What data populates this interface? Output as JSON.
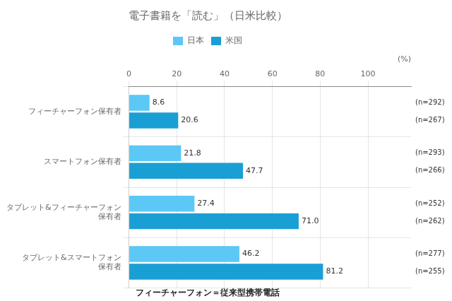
{
  "chart_data": {
    "type": "bar",
    "orientation": "horizontal",
    "title": "電子書籍を「読む」（日米比較）",
    "footnote": "フィーチャーフォン＝従来型携帯電話",
    "xlabel": "(%)",
    "categories": [
      "フィーチャーフォン保有者",
      "スマートフォン保有者",
      "タブレット&フィーチャーフォン\n保有者",
      "タブレット&スマートフォン\n保有者"
    ],
    "series": [
      {
        "name": "日本",
        "color": "#5bc8f5",
        "values": [
          8.6,
          21.8,
          27.4,
          46.2
        ],
        "value_labels": [
          "8.6",
          "21.8",
          "27.4",
          "46.2"
        ],
        "annotations": [
          "(n=292)",
          "(n=293)",
          "(n=252)",
          "(n=277)"
        ]
      },
      {
        "name": "米国",
        "color": "#1a9fd4",
        "values": [
          20.6,
          47.7,
          71.0,
          81.2
        ],
        "value_labels": [
          "20.6",
          "47.7",
          "71.0",
          "81.2"
        ],
        "annotations": [
          "(n=267)",
          "(n=266)",
          "(n=262)",
          "(n=255)"
        ]
      }
    ],
    "xlim": [
      0,
      118
    ],
    "xticks": [
      0,
      20,
      40,
      60,
      80,
      100
    ],
    "grid": true,
    "legend": "top",
    "data_labels": true
  }
}
